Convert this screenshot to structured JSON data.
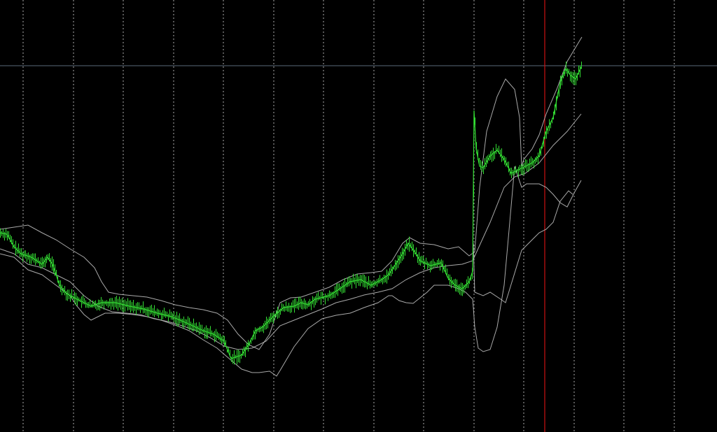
{
  "chart_data": {
    "type": "line",
    "ylim": [
      0,
      618
    ],
    "x_count": 832,
    "grid": "vertical-dashed",
    "colors": {
      "background": "#000000",
      "price": "#33dd33",
      "bands": "#bbbbbb",
      "grid": "#cccccc",
      "horizontal_line": "#5a6a7a",
      "vertical_marker": "#cc1111"
    },
    "reference_lines": {
      "horizontal_y": 524,
      "marker_x": 778
    },
    "grid_x": [
      33,
      105,
      176,
      248,
      319,
      391,
      462,
      534,
      605,
      677,
      748,
      820,
      891,
      963
    ],
    "price_series": {
      "name": "",
      "points": [
        [
          0,
          285
        ],
        [
          10,
          283
        ],
        [
          20,
          265
        ],
        [
          30,
          255
        ],
        [
          45,
          250
        ],
        [
          60,
          240
        ],
        [
          68,
          250
        ],
        [
          75,
          240
        ],
        [
          85,
          210
        ],
        [
          95,
          198
        ],
        [
          110,
          190
        ],
        [
          130,
          180
        ],
        [
          145,
          185
        ],
        [
          165,
          185
        ],
        [
          185,
          180
        ],
        [
          205,
          176
        ],
        [
          225,
          170
        ],
        [
          245,
          165
        ],
        [
          262,
          158
        ],
        [
          275,
          152
        ],
        [
          290,
          145
        ],
        [
          305,
          140
        ],
        [
          320,
          130
        ],
        [
          330,
          105
        ],
        [
          345,
          110
        ],
        [
          355,
          125
        ],
        [
          365,
          145
        ],
        [
          375,
          150
        ],
        [
          390,
          165
        ],
        [
          405,
          178
        ],
        [
          420,
          180
        ],
        [
          430,
          185
        ],
        [
          440,
          182
        ],
        [
          450,
          190
        ],
        [
          470,
          195
        ],
        [
          490,
          208
        ],
        [
          500,
          215
        ],
        [
          515,
          218
        ],
        [
          530,
          210
        ],
        [
          545,
          218
        ],
        [
          555,
          225
        ],
        [
          565,
          240
        ],
        [
          575,
          255
        ],
        [
          583,
          270
        ],
        [
          592,
          258
        ],
        [
          600,
          245
        ],
        [
          615,
          238
        ],
        [
          630,
          242
        ],
        [
          640,
          220
        ],
        [
          650,
          210
        ],
        [
          660,
          205
        ],
        [
          670,
          215
        ],
        [
          675,
          230
        ],
        [
          677,
          460
        ],
        [
          680,
          405
        ],
        [
          685,
          380
        ],
        [
          690,
          378
        ],
        [
          700,
          395
        ],
        [
          710,
          403
        ],
        [
          720,
          390
        ],
        [
          730,
          370
        ],
        [
          740,
          375
        ],
        [
          750,
          380
        ],
        [
          760,
          385
        ],
        [
          770,
          395
        ],
        [
          780,
          430
        ],
        [
          790,
          450
        ],
        [
          800,
          500
        ],
        [
          808,
          520
        ],
        [
          815,
          510
        ],
        [
          822,
          505
        ],
        [
          830,
          522
        ]
      ]
    },
    "upper_band": {
      "name": "",
      "points": [
        [
          0,
          290
        ],
        [
          20,
          293
        ],
        [
          40,
          296
        ],
        [
          60,
          285
        ],
        [
          80,
          275
        ],
        [
          100,
          262
        ],
        [
          120,
          250
        ],
        [
          135,
          235
        ],
        [
          145,
          215
        ],
        [
          155,
          200
        ],
        [
          170,
          197
        ],
        [
          190,
          195
        ],
        [
          210,
          193
        ],
        [
          230,
          188
        ],
        [
          250,
          182
        ],
        [
          270,
          178
        ],
        [
          290,
          175
        ],
        [
          310,
          170
        ],
        [
          325,
          160
        ],
        [
          340,
          140
        ],
        [
          355,
          125
        ],
        [
          370,
          118
        ],
        [
          385,
          140
        ],
        [
          400,
          185
        ],
        [
          415,
          192
        ],
        [
          430,
          193
        ],
        [
          450,
          200
        ],
        [
          470,
          207
        ],
        [
          490,
          218
        ],
        [
          510,
          226
        ],
        [
          530,
          228
        ],
        [
          545,
          230
        ],
        [
          560,
          245
        ],
        [
          575,
          270
        ],
        [
          585,
          278
        ],
        [
          600,
          270
        ],
        [
          620,
          268
        ],
        [
          640,
          262
        ],
        [
          655,
          265
        ],
        [
          670,
          252
        ],
        [
          678,
          258
        ],
        [
          685,
          350
        ],
        [
          695,
          430
        ],
        [
          710,
          480
        ],
        [
          722,
          505
        ],
        [
          735,
          490
        ],
        [
          742,
          450
        ],
        [
          745,
          380
        ],
        [
          748,
          390
        ],
        [
          760,
          405
        ],
        [
          770,
          425
        ],
        [
          780,
          455
        ],
        [
          795,
          490
        ],
        [
          810,
          530
        ],
        [
          825,
          555
        ],
        [
          831,
          565
        ]
      ]
    },
    "middle_band": {
      "name": "",
      "points": [
        [
          0,
          262
        ],
        [
          20,
          255
        ],
        [
          40,
          240
        ],
        [
          60,
          235
        ],
        [
          80,
          225
        ],
        [
          100,
          215
        ],
        [
          120,
          195
        ],
        [
          140,
          180
        ],
        [
          160,
          172
        ],
        [
          180,
          170
        ],
        [
          200,
          168
        ],
        [
          220,
          162
        ],
        [
          240,
          158
        ],
        [
          260,
          152
        ],
        [
          280,
          145
        ],
        [
          300,
          135
        ],
        [
          320,
          123
        ],
        [
          340,
          118
        ],
        [
          360,
          120
        ],
        [
          380,
          130
        ],
        [
          400,
          152
        ],
        [
          420,
          160
        ],
        [
          440,
          168
        ],
        [
          460,
          176
        ],
        [
          480,
          185
        ],
        [
          500,
          190
        ],
        [
          520,
          196
        ],
        [
          540,
          200
        ],
        [
          560,
          205
        ],
        [
          580,
          218
        ],
        [
          600,
          228
        ],
        [
          620,
          235
        ],
        [
          640,
          238
        ],
        [
          660,
          240
        ],
        [
          675,
          245
        ],
        [
          700,
          300
        ],
        [
          720,
          350
        ],
        [
          735,
          365
        ],
        [
          750,
          370
        ],
        [
          770,
          385
        ],
        [
          790,
          410
        ],
        [
          810,
          430
        ],
        [
          830,
          455
        ]
      ]
    },
    "lower_band": {
      "name": "",
      "points": [
        [
          0,
          255
        ],
        [
          20,
          250
        ],
        [
          40,
          232
        ],
        [
          60,
          225
        ],
        [
          80,
          210
        ],
        [
          100,
          195
        ],
        [
          110,
          180
        ],
        [
          120,
          168
        ],
        [
          130,
          160
        ],
        [
          140,
          165
        ],
        [
          150,
          170
        ],
        [
          170,
          170
        ],
        [
          190,
          168
        ],
        [
          210,
          165
        ],
        [
          230,
          160
        ],
        [
          250,
          153
        ],
        [
          270,
          145
        ],
        [
          290,
          132
        ],
        [
          310,
          120
        ],
        [
          325,
          107
        ],
        [
          345,
          90
        ],
        [
          360,
          85
        ],
        [
          370,
          85
        ],
        [
          385,
          87
        ],
        [
          395,
          80
        ],
        [
          400,
          88
        ],
        [
          420,
          122
        ],
        [
          440,
          148
        ],
        [
          460,
          162
        ],
        [
          480,
          167
        ],
        [
          500,
          170
        ],
        [
          520,
          178
        ],
        [
          540,
          185
        ],
        [
          555,
          195
        ],
        [
          560,
          195
        ],
        [
          570,
          188
        ],
        [
          580,
          185
        ],
        [
          590,
          184
        ],
        [
          600,
          192
        ],
        [
          610,
          200
        ],
        [
          620,
          210
        ],
        [
          640,
          210
        ],
        [
          655,
          205
        ],
        [
          665,
          200
        ],
        [
          675,
          190
        ],
        [
          676,
          178
        ],
        [
          678,
          150
        ],
        [
          683,
          120
        ],
        [
          690,
          115
        ],
        [
          700,
          118
        ],
        [
          710,
          150
        ],
        [
          720,
          210
        ],
        [
          728,
          300
        ],
        [
          735,
          380
        ],
        [
          745,
          350
        ],
        [
          752,
          355
        ],
        [
          762,
          355
        ],
        [
          770,
          355
        ],
        [
          780,
          350
        ],
        [
          790,
          340
        ],
        [
          800,
          328
        ],
        [
          810,
          322
        ],
        [
          820,
          342
        ],
        [
          830,
          360
        ]
      ]
    },
    "outer_band": {
      "name": "",
      "points": [
        [
          676,
          270
        ],
        [
          678,
          200
        ],
        [
          690,
          195
        ],
        [
          700,
          200
        ],
        [
          715,
          190
        ],
        [
          722,
          185
        ],
        [
          745,
          260
        ],
        [
          770,
          285
        ],
        [
          780,
          290
        ],
        [
          790,
          300
        ],
        [
          800,
          330
        ],
        [
          812,
          345
        ],
        [
          818,
          340
        ]
      ]
    }
  }
}
